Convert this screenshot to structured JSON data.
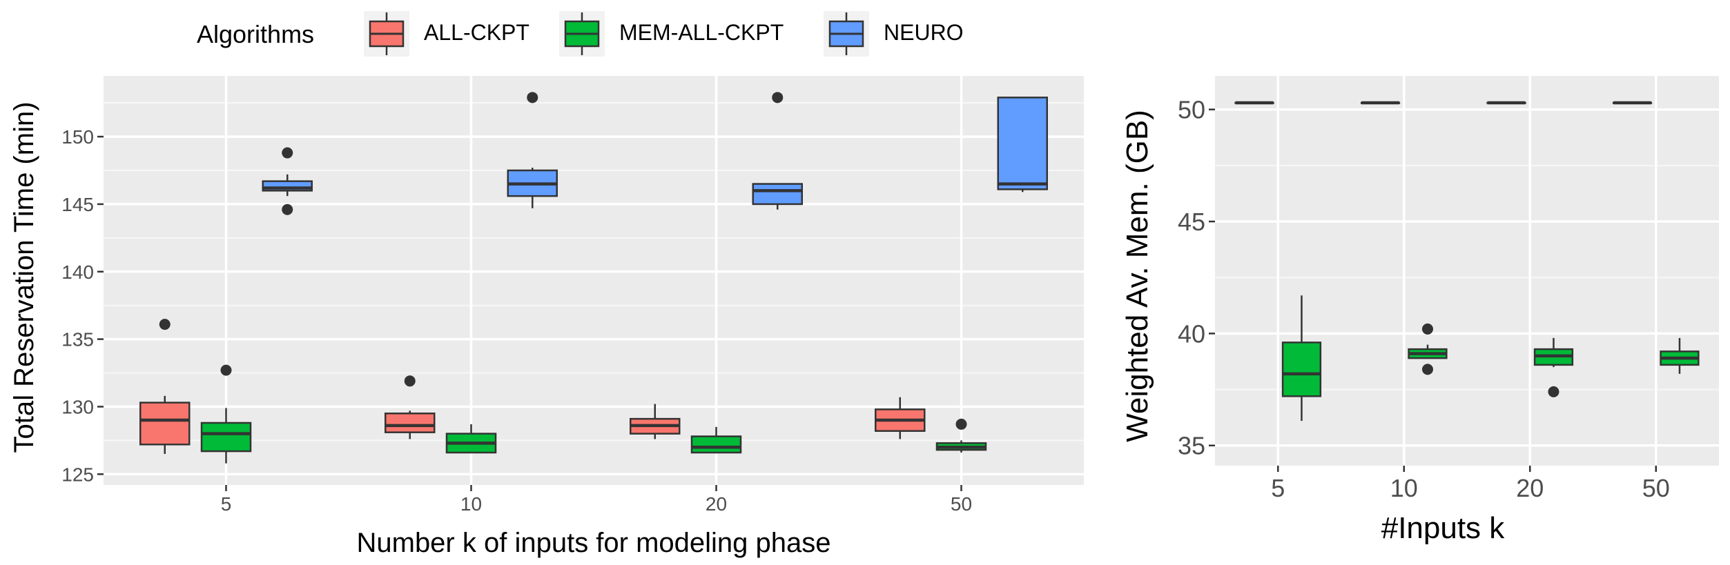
{
  "legend": {
    "title": "Algorithms",
    "items": [
      {
        "name": "ALL-CKPT",
        "color": "#F8766D"
      },
      {
        "name": "MEM-ALL-CKPT",
        "color": "#00BA38"
      },
      {
        "name": "NEURO",
        "color": "#619CFF"
      }
    ]
  },
  "chart_data": [
    {
      "type": "box",
      "xlabel": "Number k of inputs for modeling phase",
      "ylabel": "Total Reservation Time (min)",
      "categories": [
        "5",
        "10",
        "20",
        "50"
      ],
      "yticks": [
        125,
        130,
        135,
        140,
        145,
        150
      ],
      "ylim": [
        124.2,
        154.5
      ],
      "grid": true,
      "series": [
        {
          "name": "ALL-CKPT",
          "color": "#F8766D",
          "boxes": [
            {
              "whisker_low": 126.5,
              "q1": 127.2,
              "median": 129.0,
              "q3": 130.3,
              "whisker_high": 130.8,
              "outliers": [
                136.1
              ]
            },
            {
              "whisker_low": 127.6,
              "q1": 128.1,
              "median": 128.6,
              "q3": 129.5,
              "whisker_high": 129.7,
              "outliers": [
                131.9
              ]
            },
            {
              "whisker_low": 127.6,
              "q1": 128.0,
              "median": 128.6,
              "q3": 129.1,
              "whisker_high": 130.2,
              "outliers": []
            },
            {
              "whisker_low": 127.6,
              "q1": 128.2,
              "median": 129.0,
              "q3": 129.8,
              "whisker_high": 130.7,
              "outliers": []
            }
          ]
        },
        {
          "name": "MEM-ALL-CKPT",
          "color": "#00BA38",
          "boxes": [
            {
              "whisker_low": 125.8,
              "q1": 126.7,
              "median": 128.0,
              "q3": 128.8,
              "whisker_high": 129.9,
              "outliers": [
                132.7
              ]
            },
            {
              "whisker_low": 126.6,
              "q1": 126.6,
              "median": 127.3,
              "q3": 128.0,
              "whisker_high": 128.7,
              "outliers": []
            },
            {
              "whisker_low": 126.6,
              "q1": 126.6,
              "median": 127.0,
              "q3": 127.8,
              "whisker_high": 128.5,
              "outliers": []
            },
            {
              "whisker_low": 126.6,
              "q1": 126.8,
              "median": 127.0,
              "q3": 127.3,
              "whisker_high": 127.5,
              "outliers": [
                128.7
              ]
            }
          ]
        },
        {
          "name": "NEURO",
          "color": "#619CFF",
          "boxes": [
            {
              "whisker_low": 145.6,
              "q1": 146.0,
              "median": 146.2,
              "q3": 146.7,
              "whisker_high": 147.2,
              "outliers": [
                148.8,
                144.6
              ]
            },
            {
              "whisker_low": 144.7,
              "q1": 145.6,
              "median": 146.5,
              "q3": 147.5,
              "whisker_high": 147.7,
              "outliers": [
                152.9
              ]
            },
            {
              "whisker_low": 144.6,
              "q1": 145.0,
              "median": 146.0,
              "q3": 146.5,
              "whisker_high": 146.5,
              "outliers": [
                152.9
              ]
            },
            {
              "whisker_low": 145.9,
              "q1": 146.1,
              "median": 146.5,
              "q3": 152.9,
              "whisker_high": 152.9,
              "outliers": []
            }
          ]
        }
      ]
    },
    {
      "type": "box",
      "xlabel": "#Inputs k",
      "ylabel": "Weighted Av. Mem. (GB)",
      "categories": [
        "5",
        "10",
        "20",
        "50"
      ],
      "yticks": [
        35,
        40,
        45,
        50
      ],
      "ylim": [
        34.1,
        51.5
      ],
      "grid": true,
      "series": [
        {
          "name": "ALL-CKPT",
          "color": "#F8766D",
          "boxes": [
            {
              "whisker_low": 50.3,
              "q1": 50.3,
              "median": 50.3,
              "q3": 50.3,
              "whisker_high": 50.3,
              "outliers": []
            },
            {
              "whisker_low": 50.3,
              "q1": 50.3,
              "median": 50.3,
              "q3": 50.3,
              "whisker_high": 50.3,
              "outliers": []
            },
            {
              "whisker_low": 50.3,
              "q1": 50.3,
              "median": 50.3,
              "q3": 50.3,
              "whisker_high": 50.3,
              "outliers": []
            },
            {
              "whisker_low": 50.3,
              "q1": 50.3,
              "median": 50.3,
              "q3": 50.3,
              "whisker_high": 50.3,
              "outliers": []
            }
          ]
        },
        {
          "name": "MEM-ALL-CKPT",
          "color": "#00BA38",
          "boxes": [
            {
              "whisker_low": 36.1,
              "q1": 37.2,
              "median": 38.2,
              "q3": 39.6,
              "whisker_high": 41.7,
              "outliers": []
            },
            {
              "whisker_low": 38.9,
              "q1": 38.9,
              "median": 39.1,
              "q3": 39.3,
              "whisker_high": 39.5,
              "outliers": [
                40.2,
                38.4
              ]
            },
            {
              "whisker_low": 38.5,
              "q1": 38.6,
              "median": 39.0,
              "q3": 39.3,
              "whisker_high": 39.8,
              "outliers": [
                37.4
              ]
            },
            {
              "whisker_low": 38.2,
              "q1": 38.6,
              "median": 38.9,
              "q3": 39.2,
              "whisker_high": 39.8,
              "outliers": []
            }
          ]
        }
      ]
    }
  ]
}
